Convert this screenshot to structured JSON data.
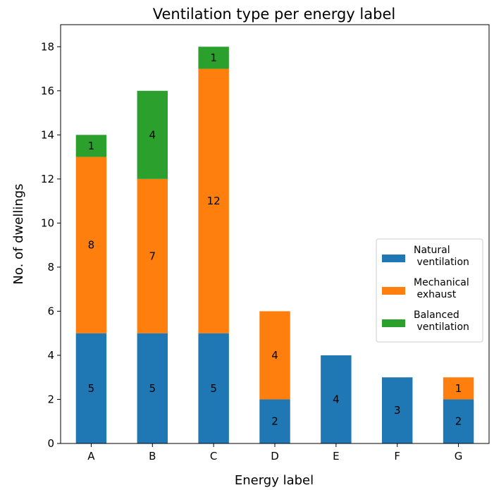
{
  "chart_data": {
    "type": "bar",
    "stacked": true,
    "title": "Ventilation type per energy label",
    "xlabel": "Energy label",
    "ylabel": "No. of dwellings",
    "categories": [
      "A",
      "B",
      "C",
      "D",
      "E",
      "F",
      "G"
    ],
    "ylim": [
      0,
      19
    ],
    "yticks": [
      0,
      2,
      4,
      6,
      8,
      10,
      12,
      14,
      16,
      18
    ],
    "grid": false,
    "legend_position": "center-right",
    "series": [
      {
        "name": "Natural ventilation",
        "legend_lines": [
          "Natural",
          " ventilation"
        ],
        "color": "#1f77b4",
        "values": [
          5,
          5,
          5,
          2,
          4,
          3,
          2
        ]
      },
      {
        "name": "Mechanical exhaust",
        "legend_lines": [
          "Mechanical",
          " exhaust"
        ],
        "color": "#ff7f0e",
        "values": [
          8,
          7,
          12,
          4,
          0,
          0,
          1
        ]
      },
      {
        "name": "Balanced ventilation",
        "legend_lines": [
          "Balanced",
          " ventilation"
        ],
        "color": "#2ca02c",
        "values": [
          1,
          4,
          1,
          0,
          0,
          0,
          0
        ]
      }
    ]
  }
}
